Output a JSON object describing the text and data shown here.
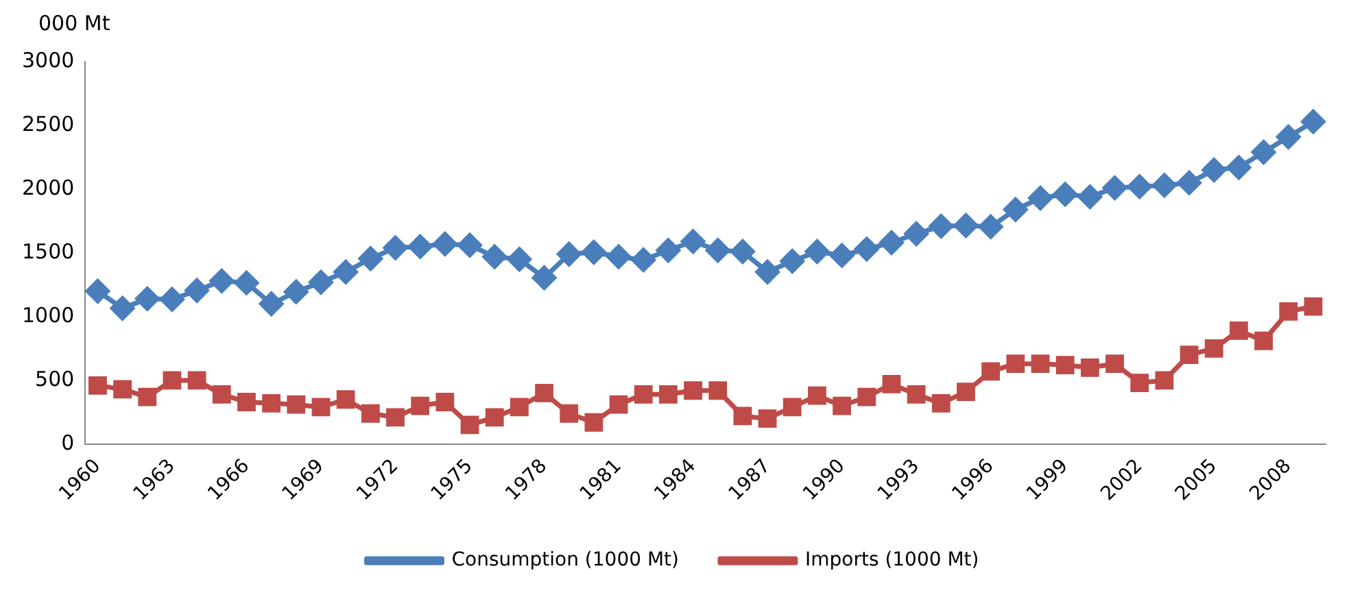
{
  "chart_data": {
    "type": "line",
    "ylabel": "000 Mt",
    "categories": [
      "1960",
      null,
      null,
      "1963",
      null,
      null,
      "1966",
      null,
      null,
      "1969",
      null,
      null,
      "1972",
      null,
      null,
      "1975",
      null,
      null,
      "1978",
      null,
      null,
      "1981",
      null,
      null,
      "1984",
      null,
      null,
      "1987",
      null,
      null,
      "1990",
      null,
      null,
      "1993",
      null,
      null,
      "1996",
      null,
      null,
      "1999",
      null,
      null,
      "2002",
      null,
      null,
      "2005",
      null,
      null,
      "2008",
      null
    ],
    "series": [
      {
        "name": "Consumption (1000 Mt)",
        "color": "#4a7ebb",
        "marker": "diamond",
        "values": [
          1200,
          1065,
          1140,
          1135,
          1205,
          1280,
          1265,
          1100,
          1195,
          1270,
          1350,
          1455,
          1540,
          1550,
          1570,
          1560,
          1470,
          1450,
          1305,
          1490,
          1505,
          1470,
          1445,
          1520,
          1590,
          1520,
          1510,
          1350,
          1435,
          1510,
          1480,
          1530,
          1580,
          1650,
          1710,
          1715,
          1705,
          1840,
          1930,
          1960,
          1940,
          2010,
          2020,
          2030,
          2050,
          2150,
          2170,
          2290,
          2410,
          2530
        ]
      },
      {
        "name": "Imports (1000 Mt)",
        "color": "#be4b48",
        "marker": "square",
        "values": [
          460,
          430,
          370,
          500,
          500,
          390,
          330,
          320,
          310,
          290,
          350,
          240,
          210,
          300,
          330,
          150,
          210,
          290,
          400,
          240,
          170,
          310,
          390,
          390,
          420,
          420,
          220,
          200,
          290,
          380,
          300,
          370,
          470,
          390,
          320,
          410,
          570,
          630,
          630,
          620,
          600,
          630,
          480,
          500,
          700,
          750,
          890,
          810,
          1040,
          1080
        ]
      }
    ],
    "ylim": [
      0,
      3000
    ],
    "yticks": [
      0,
      500,
      1000,
      1500,
      2000,
      2500,
      3000
    ],
    "grid": false,
    "legend": "bottom",
    "line_style": "solid"
  }
}
